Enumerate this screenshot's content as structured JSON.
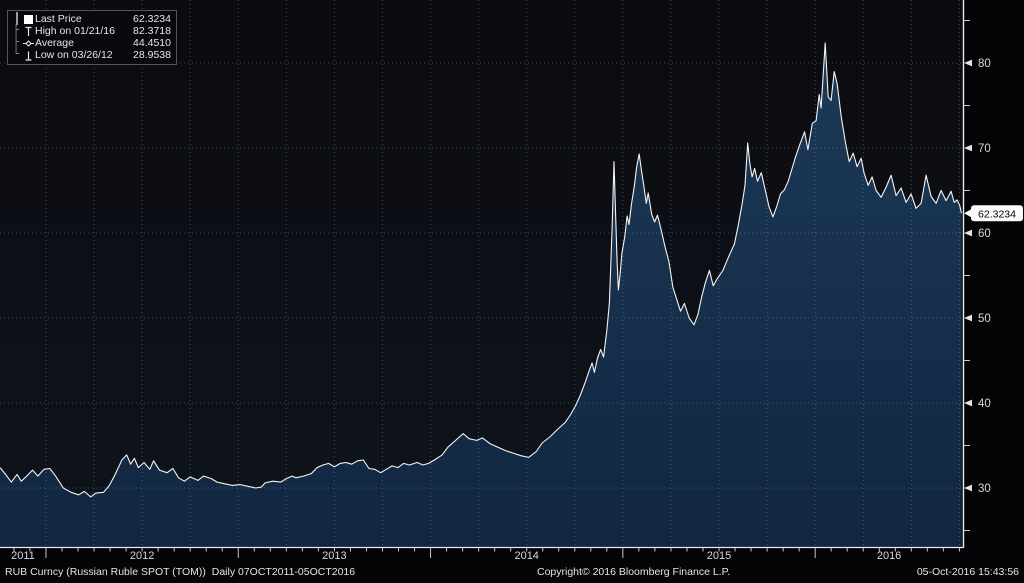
{
  "colors": {
    "background_top": "#0b0b10",
    "background_bottom": "#0e141c",
    "area_fill_top": "#1c3a58",
    "area_fill_bottom": "#112640",
    "line": "#f4f4f4",
    "grid": "#8c9baf",
    "axis": "#e9e9ee",
    "tick_label": "#d9d9de",
    "tag_background": "#fbfbfb",
    "tag_text": "#000000"
  },
  "legend": {
    "rows": [
      {
        "tree": "",
        "icon": "last-price-swatch",
        "label": "Last Price",
        "value": "62.3234"
      },
      {
        "tree": "├",
        "icon": "high-marker",
        "label": "High on 01/21/16",
        "value": "82.3718"
      },
      {
        "tree": "├",
        "icon": "average-marker",
        "label": "Average",
        "value": "44.4510"
      },
      {
        "tree": "└",
        "icon": "low-marker",
        "label": "Low on 03/26/12",
        "value": "28.9538"
      }
    ]
  },
  "last_price_tag": "62.3234",
  "footer": {
    "left": "RUB Curncy (Russian Ruble SPOT (TOM))  Daily 07OCT2011-05OCT2016",
    "center": "Copyright© 2016 Bloomberg Finance L.P.",
    "right": "05-Oct-2016 15:43:56"
  },
  "chart_data": {
    "type": "area",
    "title": "RUB Curncy (Russian Ruble SPOT (TOM))",
    "series_name": "Last Price",
    "period": "Daily 07OCT2011-05OCT2016",
    "stats": {
      "last_price": 62.3234,
      "high": {
        "date": "01/21/16",
        "value": 82.3718
      },
      "average": 44.451,
      "low": {
        "date": "03/26/12",
        "value": 28.9538
      }
    },
    "xlabel": "",
    "ylabel": "",
    "x_axis": {
      "years": [
        2011,
        2012,
        2013,
        2014,
        2015,
        2016
      ],
      "minor_tick_interval": "month",
      "grid_interval": "quarter"
    },
    "y_axis": {
      "major_ticks": [
        30,
        40,
        50,
        60,
        70,
        80
      ],
      "minor_ticks": [
        25,
        35,
        45,
        55,
        65,
        75,
        85
      ],
      "ylim": [
        23,
        87.4
      ],
      "side": "right",
      "grid": "dotted"
    },
    "x_domain_years": [
      2011.761,
      2016.761
    ],
    "points": [
      [
        2011.761,
        32.4
      ],
      [
        2011.79,
        31.6
      ],
      [
        2011.82,
        30.7
      ],
      [
        2011.85,
        31.6
      ],
      [
        2011.872,
        30.8
      ],
      [
        2011.9,
        31.4
      ],
      [
        2011.93,
        32.1
      ],
      [
        2011.958,
        31.4
      ],
      [
        2011.99,
        32.2
      ],
      [
        2012.02,
        32.3
      ],
      [
        2012.05,
        31.4
      ],
      [
        2012.09,
        30.0
      ],
      [
        2012.13,
        29.5
      ],
      [
        2012.17,
        29.2
      ],
      [
        2012.2,
        29.6
      ],
      [
        2012.232,
        28.95
      ],
      [
        2012.26,
        29.4
      ],
      [
        2012.3,
        29.5
      ],
      [
        2012.33,
        30.3
      ],
      [
        2012.36,
        31.6
      ],
      [
        2012.395,
        33.3
      ],
      [
        2012.42,
        33.9
      ],
      [
        2012.44,
        32.8
      ],
      [
        2012.46,
        33.5
      ],
      [
        2012.48,
        32.4
      ],
      [
        2012.51,
        33.0
      ],
      [
        2012.54,
        32.2
      ],
      [
        2012.56,
        33.2
      ],
      [
        2012.59,
        32.1
      ],
      [
        2012.63,
        31.8
      ],
      [
        2012.66,
        32.3
      ],
      [
        2012.69,
        31.2
      ],
      [
        2012.72,
        30.8
      ],
      [
        2012.75,
        31.3
      ],
      [
        2012.79,
        30.9
      ],
      [
        2012.82,
        31.4
      ],
      [
        2012.86,
        31.1
      ],
      [
        2012.89,
        30.7
      ],
      [
        2012.93,
        30.5
      ],
      [
        2012.97,
        30.3
      ],
      [
        2013.01,
        30.4
      ],
      [
        2013.05,
        30.2
      ],
      [
        2013.09,
        30.0
      ],
      [
        2013.12,
        30.1
      ],
      [
        2013.14,
        30.6
      ],
      [
        2013.18,
        30.8
      ],
      [
        2013.22,
        30.7
      ],
      [
        2013.25,
        31.1
      ],
      [
        2013.28,
        31.4
      ],
      [
        2013.3,
        31.2
      ],
      [
        2013.34,
        31.4
      ],
      [
        2013.38,
        31.7
      ],
      [
        2013.41,
        32.4
      ],
      [
        2013.44,
        32.7
      ],
      [
        2013.47,
        32.9
      ],
      [
        2013.5,
        32.5
      ],
      [
        2013.53,
        32.9
      ],
      [
        2013.56,
        33.0
      ],
      [
        2013.59,
        32.8
      ],
      [
        2013.62,
        33.2
      ],
      [
        2013.65,
        33.3
      ],
      [
        2013.68,
        32.3
      ],
      [
        2013.71,
        32.2
      ],
      [
        2013.74,
        31.8
      ],
      [
        2013.77,
        32.2
      ],
      [
        2013.8,
        32.6
      ],
      [
        2013.83,
        32.4
      ],
      [
        2013.86,
        32.9
      ],
      [
        2013.89,
        32.7
      ],
      [
        2013.93,
        33.0
      ],
      [
        2013.96,
        32.7
      ],
      [
        2013.99,
        32.9
      ],
      [
        2014.02,
        33.3
      ],
      [
        2014.06,
        33.9
      ],
      [
        2014.09,
        34.8
      ],
      [
        2014.12,
        35.4
      ],
      [
        2014.15,
        36.0
      ],
      [
        2014.17,
        36.4
      ],
      [
        2014.2,
        35.8
      ],
      [
        2014.24,
        35.6
      ],
      [
        2014.27,
        35.9
      ],
      [
        2014.31,
        35.2
      ],
      [
        2014.35,
        34.8
      ],
      [
        2014.39,
        34.4
      ],
      [
        2014.43,
        34.1
      ],
      [
        2014.47,
        33.8
      ],
      [
        2014.51,
        33.6
      ],
      [
        2014.55,
        34.3
      ],
      [
        2014.58,
        35.3
      ],
      [
        2014.62,
        36.0
      ],
      [
        2014.66,
        36.9
      ],
      [
        2014.7,
        37.7
      ],
      [
        2014.73,
        38.7
      ],
      [
        2014.755,
        39.7
      ],
      [
        2014.78,
        41.0
      ],
      [
        2014.805,
        42.5
      ],
      [
        2014.825,
        43.8
      ],
      [
        2014.84,
        44.7
      ],
      [
        2014.852,
        43.6
      ],
      [
        2014.868,
        45.3
      ],
      [
        2014.884,
        46.3
      ],
      [
        2014.9,
        45.4
      ],
      [
        2014.917,
        48.6
      ],
      [
        2014.93,
        51.8
      ],
      [
        2014.944,
        60.5
      ],
      [
        2014.954,
        68.4
      ],
      [
        2014.962,
        62.2
      ],
      [
        2014.97,
        56.6
      ],
      [
        2014.977,
        53.3
      ],
      [
        2014.986,
        55.3
      ],
      [
        2014.995,
        57.6
      ],
      [
        2015.01,
        59.6
      ],
      [
        2015.022,
        62.0
      ],
      [
        2015.032,
        61.0
      ],
      [
        2015.045,
        63.4
      ],
      [
        2015.06,
        65.6
      ],
      [
        2015.072,
        67.8
      ],
      [
        2015.085,
        69.3
      ],
      [
        2015.096,
        67.5
      ],
      [
        2015.11,
        65.4
      ],
      [
        2015.122,
        63.5
      ],
      [
        2015.132,
        64.7
      ],
      [
        2015.15,
        62.2
      ],
      [
        2015.165,
        61.3
      ],
      [
        2015.18,
        62.1
      ],
      [
        2015.2,
        60.3
      ],
      [
        2015.22,
        58.3
      ],
      [
        2015.24,
        56.6
      ],
      [
        2015.26,
        53.6
      ],
      [
        2015.28,
        52.2
      ],
      [
        2015.3,
        50.8
      ],
      [
        2015.32,
        51.7
      ],
      [
        2015.345,
        50.0
      ],
      [
        2015.37,
        49.2
      ],
      [
        2015.39,
        50.4
      ],
      [
        2015.41,
        52.5
      ],
      [
        2015.43,
        54.2
      ],
      [
        2015.45,
        55.6
      ],
      [
        2015.47,
        53.8
      ],
      [
        2015.49,
        54.6
      ],
      [
        2015.52,
        55.6
      ],
      [
        2015.55,
        57.2
      ],
      [
        2015.58,
        58.7
      ],
      [
        2015.6,
        60.9
      ],
      [
        2015.62,
        63.4
      ],
      [
        2015.635,
        65.6
      ],
      [
        2015.642,
        68.0
      ],
      [
        2015.649,
        70.6
      ],
      [
        2015.66,
        68.2
      ],
      [
        2015.672,
        66.6
      ],
      [
        2015.685,
        67.6
      ],
      [
        2015.7,
        66.1
      ],
      [
        2015.72,
        67.1
      ],
      [
        2015.74,
        65.1
      ],
      [
        2015.76,
        63.1
      ],
      [
        2015.78,
        61.9
      ],
      [
        2015.8,
        63.1
      ],
      [
        2015.82,
        64.6
      ],
      [
        2015.84,
        65.1
      ],
      [
        2015.86,
        66.1
      ],
      [
        2015.88,
        67.6
      ],
      [
        2015.9,
        69.1
      ],
      [
        2015.92,
        70.4
      ],
      [
        2015.945,
        71.9
      ],
      [
        2015.962,
        69.8
      ],
      [
        2015.985,
        72.9
      ],
      [
        2016.005,
        73.2
      ],
      [
        2016.021,
        76.3
      ],
      [
        2016.031,
        74.7
      ],
      [
        2016.052,
        82.37
      ],
      [
        2016.068,
        76.0
      ],
      [
        2016.083,
        75.6
      ],
      [
        2016.099,
        79.0
      ],
      [
        2016.114,
        77.6
      ],
      [
        2016.135,
        73.8
      ],
      [
        2016.156,
        70.8
      ],
      [
        2016.177,
        68.4
      ],
      [
        2016.198,
        69.4
      ],
      [
        2016.218,
        67.8
      ],
      [
        2016.239,
        68.8
      ],
      [
        2016.255,
        67.0
      ],
      [
        2016.276,
        65.6
      ],
      [
        2016.296,
        66.6
      ],
      [
        2016.317,
        65.0
      ],
      [
        2016.343,
        64.2
      ],
      [
        2016.369,
        65.4
      ],
      [
        2016.395,
        66.8
      ],
      [
        2016.421,
        64.4
      ],
      [
        2016.447,
        65.3
      ],
      [
        2016.473,
        63.6
      ],
      [
        2016.499,
        64.6
      ],
      [
        2016.525,
        62.9
      ],
      [
        2016.551,
        63.5
      ],
      [
        2016.577,
        66.8
      ],
      [
        2016.603,
        64.3
      ],
      [
        2016.629,
        63.5
      ],
      [
        2016.655,
        65.0
      ],
      [
        2016.681,
        63.8
      ],
      [
        2016.707,
        64.9
      ],
      [
        2016.723,
        63.6
      ],
      [
        2016.738,
        63.9
      ],
      [
        2016.752,
        63.2
      ],
      [
        2016.761,
        62.3234
      ]
    ]
  }
}
